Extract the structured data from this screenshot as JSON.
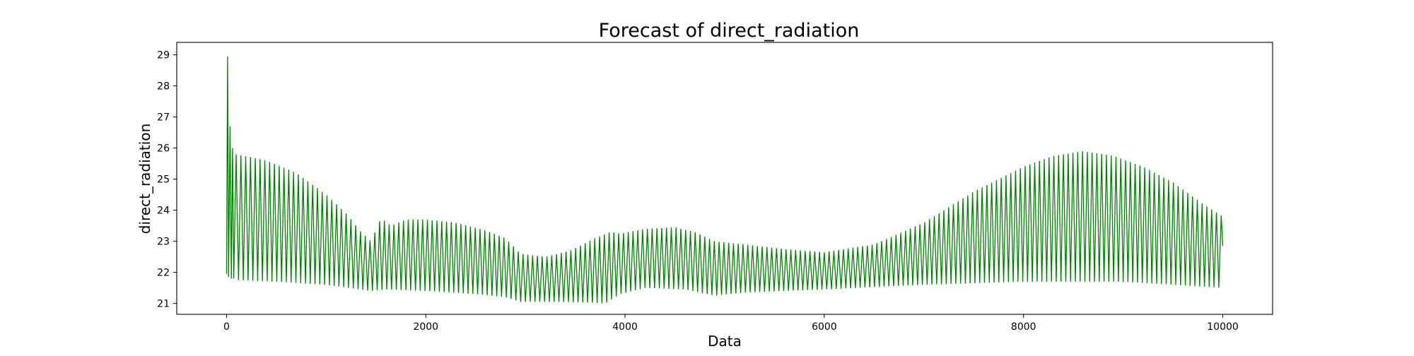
{
  "chart_data": {
    "type": "line",
    "title": "Forecast of direct_radiation",
    "xlabel": "Data",
    "ylabel": "direct_radiation",
    "xlim": [
      -500,
      10500
    ],
    "ylim": [
      20.65,
      29.4
    ],
    "xticks": [
      0,
      2000,
      4000,
      6000,
      8000,
      10000
    ],
    "xtick_labels": [
      "0",
      "2000",
      "4000",
      "6000",
      "8000",
      "10000"
    ],
    "yticks": [
      21,
      22,
      23,
      24,
      25,
      26,
      27,
      28,
      29
    ],
    "ytick_labels": [
      "21",
      "22",
      "23",
      "24",
      "25",
      "26",
      "27",
      "28",
      "29"
    ],
    "grid": false,
    "legend": "none",
    "line_color": "#008000",
    "series": [
      {
        "x_start": 0,
        "x_end": 10000,
        "oscillation_period": 48,
        "initial_spikes": [
          {
            "x": 0,
            "y": 21.95
          },
          {
            "x": 10,
            "y": 28.95
          },
          {
            "x": 20,
            "y": 21.85
          },
          {
            "x": 35,
            "y": 26.7
          },
          {
            "x": 48,
            "y": 21.8
          },
          {
            "x": 60,
            "y": 26.0
          },
          {
            "x": 72,
            "y": 21.8
          }
        ],
        "upper_envelope": [
          {
            "x": 100,
            "y": 25.8
          },
          {
            "x": 400,
            "y": 25.6
          },
          {
            "x": 700,
            "y": 25.2
          },
          {
            "x": 1000,
            "y": 24.5
          },
          {
            "x": 1200,
            "y": 23.9
          },
          {
            "x": 1350,
            "y": 23.3
          },
          {
            "x": 1450,
            "y": 23.0
          },
          {
            "x": 1550,
            "y": 23.75
          },
          {
            "x": 1650,
            "y": 23.5
          },
          {
            "x": 1800,
            "y": 23.7
          },
          {
            "x": 2000,
            "y": 23.7
          },
          {
            "x": 2300,
            "y": 23.6
          },
          {
            "x": 2600,
            "y": 23.35
          },
          {
            "x": 2800,
            "y": 23.1
          },
          {
            "x": 2950,
            "y": 22.6
          },
          {
            "x": 3200,
            "y": 22.5
          },
          {
            "x": 3450,
            "y": 22.7
          },
          {
            "x": 3700,
            "y": 23.1
          },
          {
            "x": 3850,
            "y": 23.3
          },
          {
            "x": 3950,
            "y": 23.25
          },
          {
            "x": 4200,
            "y": 23.4
          },
          {
            "x": 4500,
            "y": 23.45
          },
          {
            "x": 4700,
            "y": 23.3
          },
          {
            "x": 4900,
            "y": 23.0
          },
          {
            "x": 5200,
            "y": 22.9
          },
          {
            "x": 5600,
            "y": 22.75
          },
          {
            "x": 6000,
            "y": 22.65
          },
          {
            "x": 6500,
            "y": 22.9
          },
          {
            "x": 7000,
            "y": 23.6
          },
          {
            "x": 7500,
            "y": 24.6
          },
          {
            "x": 8000,
            "y": 25.4
          },
          {
            "x": 8300,
            "y": 25.75
          },
          {
            "x": 8600,
            "y": 25.9
          },
          {
            "x": 8900,
            "y": 25.75
          },
          {
            "x": 9200,
            "y": 25.4
          },
          {
            "x": 9500,
            "y": 24.9
          },
          {
            "x": 9800,
            "y": 24.2
          },
          {
            "x": 10000,
            "y": 23.8
          }
        ],
        "lower_envelope": [
          {
            "x": 100,
            "y": 21.75
          },
          {
            "x": 500,
            "y": 21.7
          },
          {
            "x": 1000,
            "y": 21.6
          },
          {
            "x": 1450,
            "y": 21.4
          },
          {
            "x": 1600,
            "y": 21.45
          },
          {
            "x": 2000,
            "y": 21.4
          },
          {
            "x": 2500,
            "y": 21.3
          },
          {
            "x": 2800,
            "y": 21.2
          },
          {
            "x": 2950,
            "y": 21.05
          },
          {
            "x": 3400,
            "y": 21.05
          },
          {
            "x": 3800,
            "y": 21.0
          },
          {
            "x": 3950,
            "y": 21.3
          },
          {
            "x": 4200,
            "y": 21.5
          },
          {
            "x": 4600,
            "y": 21.45
          },
          {
            "x": 4900,
            "y": 21.25
          },
          {
            "x": 5200,
            "y": 21.35
          },
          {
            "x": 6000,
            "y": 21.45
          },
          {
            "x": 7000,
            "y": 21.6
          },
          {
            "x": 8000,
            "y": 21.7
          },
          {
            "x": 9000,
            "y": 21.7
          },
          {
            "x": 9500,
            "y": 21.6
          },
          {
            "x": 10000,
            "y": 21.5
          }
        ],
        "end_value": {
          "x": 10000,
          "y": 22.85
        }
      }
    ]
  }
}
